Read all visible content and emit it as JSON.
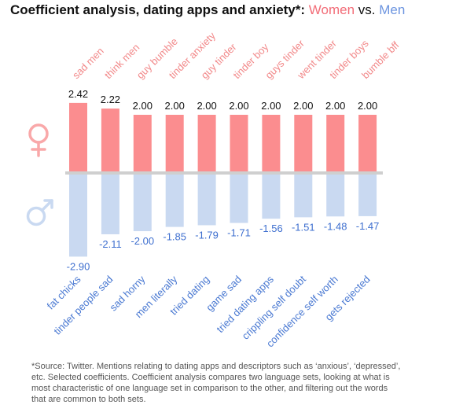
{
  "header": {
    "title_main": "Coefficient analysis, dating apps and anxiety*: ",
    "title_women": "Women",
    "title_vs": " vs. ",
    "title_men": "Men"
  },
  "icons": {
    "women": "female-symbol-icon",
    "men": "male-symbol-icon"
  },
  "colors": {
    "women_bar": "#fb8d8f",
    "women_label": "#f2898a",
    "men_bar": "#c9d9f1",
    "men_label": "#4a79d2",
    "value_text_women": "#111111",
    "value_text_men": "#3e6fcf",
    "axis_line": "#cfcfcf"
  },
  "chart_data": {
    "type": "bar",
    "title": "Coefficient analysis, dating apps and anxiety*: Women vs. Men",
    "series": [
      {
        "name": "Women",
        "categories": [
          "sad men",
          "think men",
          "guy bumble",
          "tinder anxiety",
          "guy tinder",
          "tinder boy",
          "guys tinder",
          "went tinder",
          "tinder boys",
          "bumble bff"
        ],
        "values": [
          2.42,
          2.22,
          2.0,
          2.0,
          2.0,
          2.0,
          2.0,
          2.0,
          2.0,
          2.0
        ],
        "labels": [
          "2.42",
          "2.22",
          "2.00",
          "2.00",
          "2.00",
          "2.00",
          "2.00",
          "2.00",
          "2.00",
          "2.00"
        ]
      },
      {
        "name": "Men",
        "categories": [
          "fat chicks",
          "tinder people sad",
          "sad horny",
          "men literally",
          "tried dating",
          "game sad",
          "tried dating apps",
          "crippling self doubt",
          "confidence self worth",
          "gets rejected"
        ],
        "values": [
          -2.9,
          -2.11,
          -2.0,
          -1.85,
          -1.79,
          -1.71,
          -1.56,
          -1.51,
          -1.48,
          -1.47
        ],
        "labels": [
          "-2.90",
          "-2.11",
          "-2.00",
          "-1.85",
          "-1.79",
          "-1.71",
          "-1.56",
          "-1.51",
          "-1.48",
          "-1.47"
        ]
      }
    ]
  },
  "footnote": "*Source: Twitter. Mentions relating to dating apps and descriptors such as ‘anxious’, ‘depressed’, etc. Selected coefficients. Coefficient analysis compares two language sets, looking at what is most characteristic of one language set in comparison to the other, and filtering out the words that are common to both sets."
}
